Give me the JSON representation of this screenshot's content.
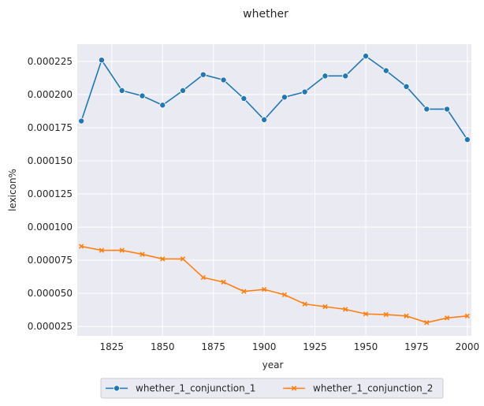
{
  "chart_data": {
    "type": "line",
    "title": "whether",
    "xlabel": "year",
    "ylabel": "lexicon%",
    "xlim": [
      1808,
      2002
    ],
    "ylim": [
      1.8e-05,
      0.000238
    ],
    "xticks": [
      1825,
      1850,
      1875,
      1900,
      1925,
      1950,
      1975,
      2000
    ],
    "yticks": [
      2.5e-05,
      5e-05,
      7.5e-05,
      0.0001,
      0.000125,
      0.00015,
      0.000175,
      0.0002,
      0.000225
    ],
    "xtick_labels": [
      "1825",
      "1850",
      "1875",
      "1900",
      "1925",
      "1950",
      "1975",
      "2000"
    ],
    "ytick_labels": [
      "0.000025",
      "0.000050",
      "0.000075",
      "0.000100",
      "0.000125",
      "0.000150",
      "0.000175",
      "0.000200",
      "0.000225"
    ],
    "grid": true,
    "legend_position": "bottom-center",
    "x": [
      1810,
      1820,
      1830,
      1840,
      1850,
      1860,
      1870,
      1880,
      1890,
      1900,
      1910,
      1920,
      1930,
      1940,
      1950,
      1960,
      1970,
      1980,
      1990,
      2000
    ],
    "series": [
      {
        "name": "whether_1_conjunction_1",
        "marker": "circle",
        "color": "#1f77b4",
        "values": [
          0.00018,
          0.000226,
          0.000203,
          0.000199,
          0.000192,
          0.000203,
          0.000215,
          0.000211,
          0.000197,
          0.000181,
          0.000198,
          0.000202,
          0.000214,
          0.000214,
          0.000229,
          0.000218,
          0.000206,
          0.000189,
          0.000189,
          0.000166
        ]
      },
      {
        "name": "whether_1_conjunction_2",
        "marker": "x",
        "color": "#ff7f0e",
        "values": [
          8.55e-05,
          8.25e-05,
          8.25e-05,
          7.95e-05,
          7.6e-05,
          7.6e-05,
          6.2e-05,
          5.85e-05,
          5.15e-05,
          5.3e-05,
          4.9e-05,
          4.2e-05,
          4e-05,
          3.8e-05,
          3.45e-05,
          3.4e-05,
          3.3e-05,
          2.8e-05,
          3.15e-05,
          3.3e-05
        ]
      }
    ]
  }
}
